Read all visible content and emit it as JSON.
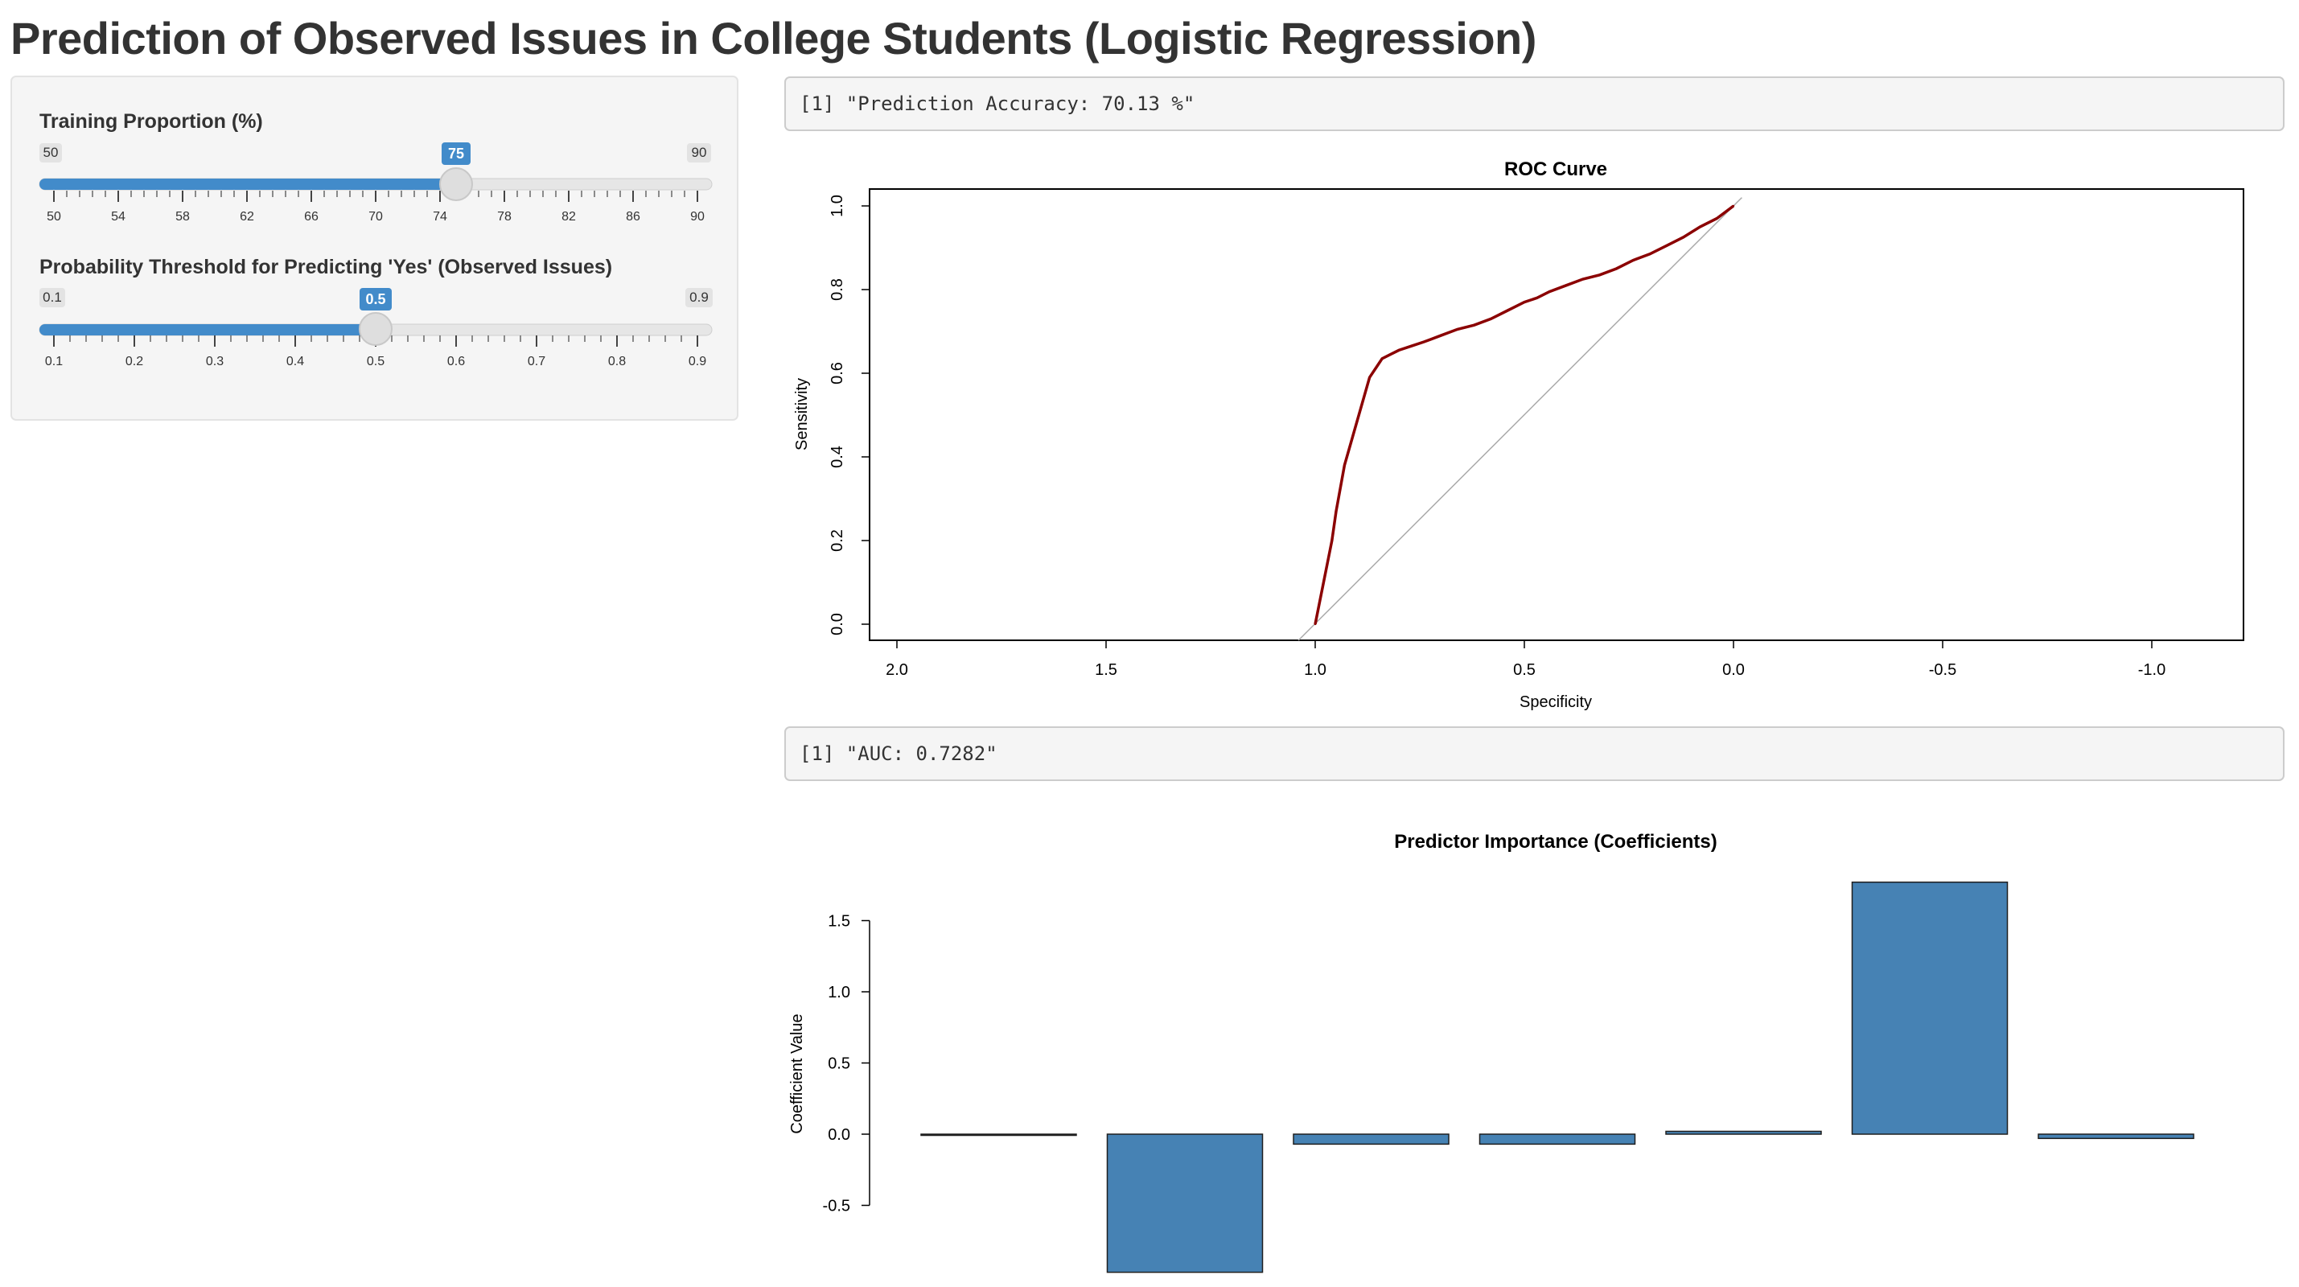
{
  "page": {
    "title": "Prediction of Observed Issues in College Students (Logistic Regression)"
  },
  "sidebar": {
    "training_slider": {
      "label": "Training Proportion (%)",
      "min": 50,
      "max": 90,
      "value": 75,
      "min_label": "50",
      "max_label": "90",
      "value_label": "75",
      "tick_labels": [
        "50",
        "54",
        "58",
        "62",
        "66",
        "70",
        "74",
        "78",
        "82",
        "86",
        "90"
      ]
    },
    "threshold_slider": {
      "label": "Probability Threshold for Predicting 'Yes' (Observed Issues)",
      "min": 0.1,
      "max": 0.9,
      "value": 0.5,
      "min_label": "0.1",
      "max_label": "0.9",
      "value_label": "0.5",
      "tick_labels": [
        "0.1",
        "0.2",
        "0.3",
        "0.4",
        "0.5",
        "0.6",
        "0.7",
        "0.8",
        "0.9"
      ]
    }
  },
  "main": {
    "accuracy_output": "[1] \"Prediction Accuracy: 70.13 %\"",
    "auc_output": "[1] \"AUC: 0.7282\""
  },
  "colors": {
    "slider_accent": "#428bca",
    "roc_line": "#8b0000",
    "bar_fill": "#4682b4"
  },
  "chart_data": [
    {
      "type": "line",
      "title": "ROC Curve",
      "xlabel": "Specificity",
      "ylabel": "Sensitivity",
      "xlim": [
        2.0,
        -1.0
      ],
      "ylim": [
        0.0,
        1.0
      ],
      "x_ticks": [
        "2.0",
        "1.5",
        "1.0",
        "0.5",
        "0.0",
        "-0.5",
        "-1.0"
      ],
      "y_ticks": [
        "0.0",
        "0.2",
        "0.4",
        "0.6",
        "0.8",
        "1.0"
      ],
      "grid": false,
      "reference_line": "diagonal",
      "series": [
        {
          "x": [
            1.0,
            0.98,
            0.96,
            0.95,
            0.93,
            0.91,
            0.89,
            0.87,
            0.85,
            0.84,
            0.82,
            0.8,
            0.77,
            0.74,
            0.7,
            0.66,
            0.62,
            0.58,
            0.54,
            0.5,
            0.47,
            0.44,
            0.4,
            0.36,
            0.32,
            0.28,
            0.24,
            0.2,
            0.16,
            0.12,
            0.08,
            0.04,
            0.0
          ],
          "y": [
            0.0,
            0.1,
            0.2,
            0.27,
            0.38,
            0.45,
            0.52,
            0.59,
            0.62,
            0.635,
            0.645,
            0.655,
            0.665,
            0.675,
            0.69,
            0.705,
            0.715,
            0.73,
            0.75,
            0.77,
            0.78,
            0.795,
            0.81,
            0.825,
            0.835,
            0.85,
            0.87,
            0.885,
            0.905,
            0.925,
            0.95,
            0.97,
            1.0
          ]
        }
      ]
    },
    {
      "type": "bar",
      "title": "Predictor Importance (Coefficients)",
      "xlabel": "",
      "ylabel": "Coefficient Value",
      "categories": [
        "",
        "",
        "",
        "",
        "",
        "",
        ""
      ],
      "values": [
        0.0,
        -0.97,
        -0.07,
        -0.07,
        0.02,
        1.77,
        -0.03
      ],
      "y_ticks": [
        "-0.5",
        "0.0",
        "0.5",
        "1.0",
        "1.5"
      ],
      "ylim": [
        -0.97,
        1.77
      ],
      "grid": false
    }
  ]
}
